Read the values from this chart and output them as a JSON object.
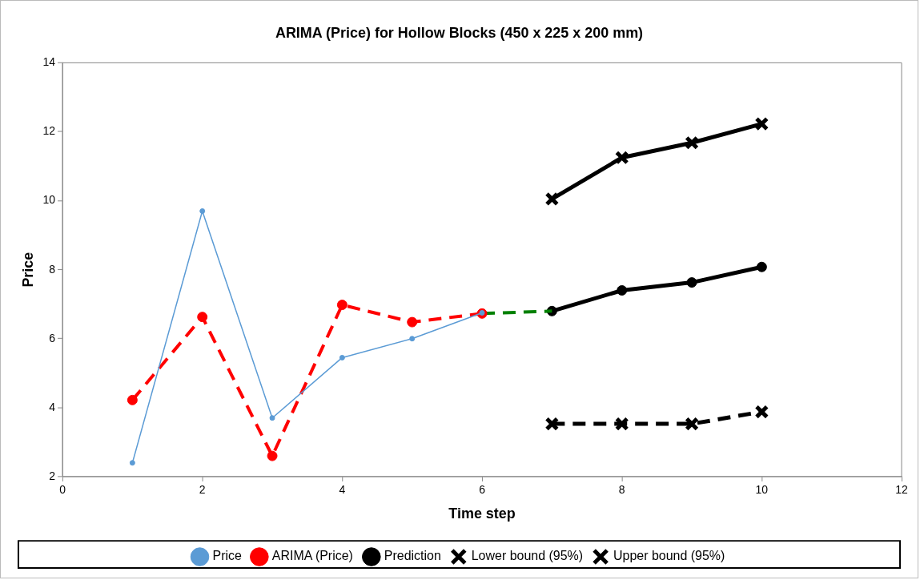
{
  "chart_data": {
    "type": "line",
    "title": "ARIMA (Price) for Hollow Blocks (450 x 225 x 200 mm)",
    "xlabel": "Time step",
    "ylabel": "Price",
    "xlim": [
      0,
      12
    ],
    "xticks": [
      0,
      2,
      4,
      6,
      8,
      10,
      12
    ],
    "ylim": [
      2,
      14
    ],
    "yticks": [
      2,
      4,
      6,
      8,
      10,
      12,
      14
    ],
    "grid": false,
    "legend": "bottom",
    "series": [
      {
        "name": "Price",
        "color": "#5b9bd5",
        "x": [
          1,
          2,
          3,
          4,
          5,
          6
        ],
        "values": [
          2.4,
          9.7,
          3.7,
          5.45,
          6.0,
          6.75
        ],
        "marker": "circle",
        "line_style": "solid"
      },
      {
        "name": "ARIMA (Price)",
        "color": "#ff0000",
        "x": [
          1,
          2,
          3,
          4,
          5,
          6
        ],
        "values": [
          4.22,
          6.63,
          2.6,
          6.98,
          6.48,
          6.73
        ],
        "marker": "circle",
        "line_style": "dashed"
      },
      {
        "color": "#008000",
        "x": [
          6,
          7
        ],
        "values": [
          6.73,
          6.8
        ],
        "marker": "none",
        "line_style": "dashed"
      },
      {
        "name": "Prediction",
        "color": "#000000",
        "x": [
          7,
          8,
          9,
          10
        ],
        "values": [
          6.8,
          7.4,
          7.63,
          8.08
        ],
        "marker": "circle",
        "line_style": "solid"
      },
      {
        "name": "Lower bound (95%)",
        "color": "#000000",
        "x": [
          7,
          8,
          9,
          10
        ],
        "values": [
          3.53,
          3.53,
          3.53,
          3.88
        ],
        "marker": "cross",
        "line_style": "dashed"
      },
      {
        "name": "Upper bound (95%)",
        "color": "#000000",
        "x": [
          7,
          8,
          9,
          10
        ],
        "values": [
          10.05,
          11.25,
          11.68,
          12.23
        ],
        "marker": "cross",
        "line_style": "solid"
      }
    ]
  }
}
